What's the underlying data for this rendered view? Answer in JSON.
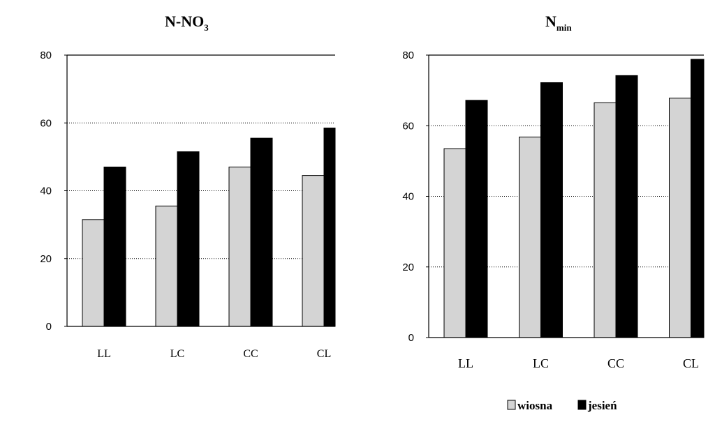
{
  "colors": {
    "wiosna": "#d4d4d4",
    "jesien": "#000000"
  },
  "legend": {
    "wiosna_label": "wiosna",
    "jesien_label": "jesień"
  },
  "chart_data": [
    {
      "type": "bar",
      "title": "N-NO3",
      "title_main": "N-NO",
      "title_sub": "3",
      "categories": [
        "LL",
        "LC",
        "CC",
        "CL"
      ],
      "ylim": [
        0,
        80
      ],
      "yticks": [
        "0",
        "20",
        "40",
        "60",
        "80"
      ],
      "grid": true,
      "series": [
        {
          "name": "wiosna",
          "values": [
            31.5,
            35.5,
            47,
            44.5
          ]
        },
        {
          "name": "jesień",
          "values": [
            47,
            51.5,
            55.5,
            58.5
          ]
        }
      ]
    },
    {
      "type": "bar",
      "title": "Nmin",
      "title_main": "N",
      "title_sub": "min",
      "categories": [
        "LL",
        "LC",
        "CC",
        "CL"
      ],
      "ylim": [
        0,
        80
      ],
      "yticks": [
        "0",
        "20",
        "40",
        "60",
        "80"
      ],
      "grid": true,
      "legend_position": "bottom-right",
      "series": [
        {
          "name": "wiosna",
          "values": [
            53.5,
            56.8,
            66.5,
            67.8
          ]
        },
        {
          "name": "jesień",
          "values": [
            67.2,
            72.2,
            74.2,
            78.8
          ]
        }
      ]
    }
  ]
}
